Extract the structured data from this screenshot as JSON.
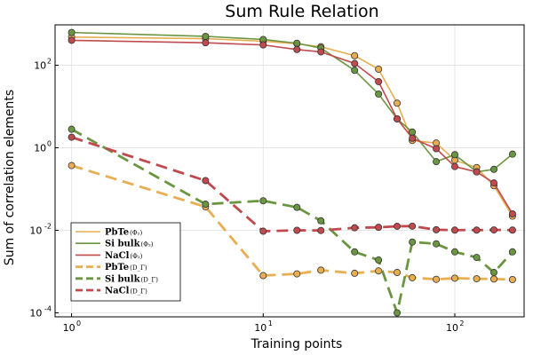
{
  "chart_data": {
    "type": "line",
    "title": "Sum Rule Relation",
    "xlabel": "Training points",
    "ylabel": "Sum of correlation elements",
    "xscale": "log",
    "yscale": "log",
    "xlim": [
      0.82,
      230
    ],
    "ylim": [
      8e-05,
      950
    ],
    "xticks": [
      {
        "base": "10",
        "exp": "0",
        "value": 1
      },
      {
        "base": "10",
        "exp": "1",
        "value": 10
      },
      {
        "base": "10",
        "exp": "2",
        "value": 100
      }
    ],
    "yticks": [
      {
        "base": "10",
        "exp": "-4",
        "value": 0.0001
      },
      {
        "base": "10",
        "exp": "-2",
        "value": 0.01
      },
      {
        "base": "10",
        "exp": "0",
        "value": 1
      },
      {
        "base": "10",
        "exp": "2",
        "value": 100
      }
    ],
    "grid": true,
    "legend_position": "bottom-left",
    "series": [
      {
        "name": "PbTe",
        "sub": "(Φ₂)",
        "color": "#e8ae51",
        "dash": false,
        "x": [
          1,
          5,
          10,
          15,
          20,
          30,
          40,
          50,
          60,
          80,
          100,
          130,
          160,
          200
        ],
        "y": [
          480,
          440,
          380,
          330,
          280,
          170,
          80,
          12,
          1.5,
          1.3,
          0.5,
          0.33,
          0.12,
          0.022
        ]
      },
      {
        "name": "Si bulk",
        "sub": "(Φ₂)",
        "color": "#6b9641",
        "dash": false,
        "x": [
          1,
          5,
          10,
          15,
          20,
          30,
          40,
          50,
          60,
          80,
          100,
          130,
          160,
          200
        ],
        "y": [
          620,
          500,
          420,
          340,
          260,
          75,
          20,
          5,
          2.4,
          0.46,
          0.68,
          0.26,
          0.3,
          0.7
        ]
      },
      {
        "name": "NaCl",
        "sub": "(Φ₂)",
        "color": "#c04a4e",
        "dash": false,
        "x": [
          1,
          5,
          10,
          15,
          20,
          30,
          40,
          50,
          60,
          80,
          100,
          130,
          160,
          200
        ],
        "y": [
          400,
          350,
          310,
          240,
          210,
          110,
          40,
          5,
          1.7,
          0.95,
          0.35,
          0.26,
          0.14,
          0.025
        ]
      },
      {
        "name": "PbTe",
        "sub": "(D_Γ)",
        "color": "#e8ae51",
        "dash": true,
        "x": [
          1,
          5,
          10,
          15,
          20,
          30,
          40,
          50,
          60,
          80,
          100,
          130,
          160,
          200
        ],
        "y": [
          0.37,
          0.037,
          0.0008,
          0.00088,
          0.00108,
          0.00091,
          0.00104,
          0.00095,
          0.00071,
          0.00065,
          0.00069,
          0.00067,
          0.00066,
          0.00064
        ]
      },
      {
        "name": "Si bulk",
        "sub": "(D_Γ)",
        "color": "#6b9641",
        "dash": true,
        "x": [
          1,
          5,
          10,
          15,
          20,
          30,
          40,
          50,
          60,
          80,
          100,
          130,
          160,
          200
        ],
        "y": [
          2.8,
          0.043,
          0.052,
          0.036,
          0.017,
          0.003,
          0.0019,
          0.0001,
          0.0052,
          0.0047,
          0.003,
          0.0022,
          0.00095,
          0.003
        ]
      },
      {
        "name": "NaCl",
        "sub": "(D_Γ)",
        "color": "#c04a4e",
        "dash": true,
        "x": [
          1,
          5,
          10,
          15,
          20,
          30,
          40,
          50,
          60,
          80,
          100,
          130,
          160,
          200
        ],
        "y": [
          1.8,
          0.16,
          0.0095,
          0.01,
          0.0099,
          0.0115,
          0.0118,
          0.0125,
          0.0126,
          0.0103,
          0.0101,
          0.0101,
          0.0102,
          0.0101
        ]
      }
    ]
  }
}
